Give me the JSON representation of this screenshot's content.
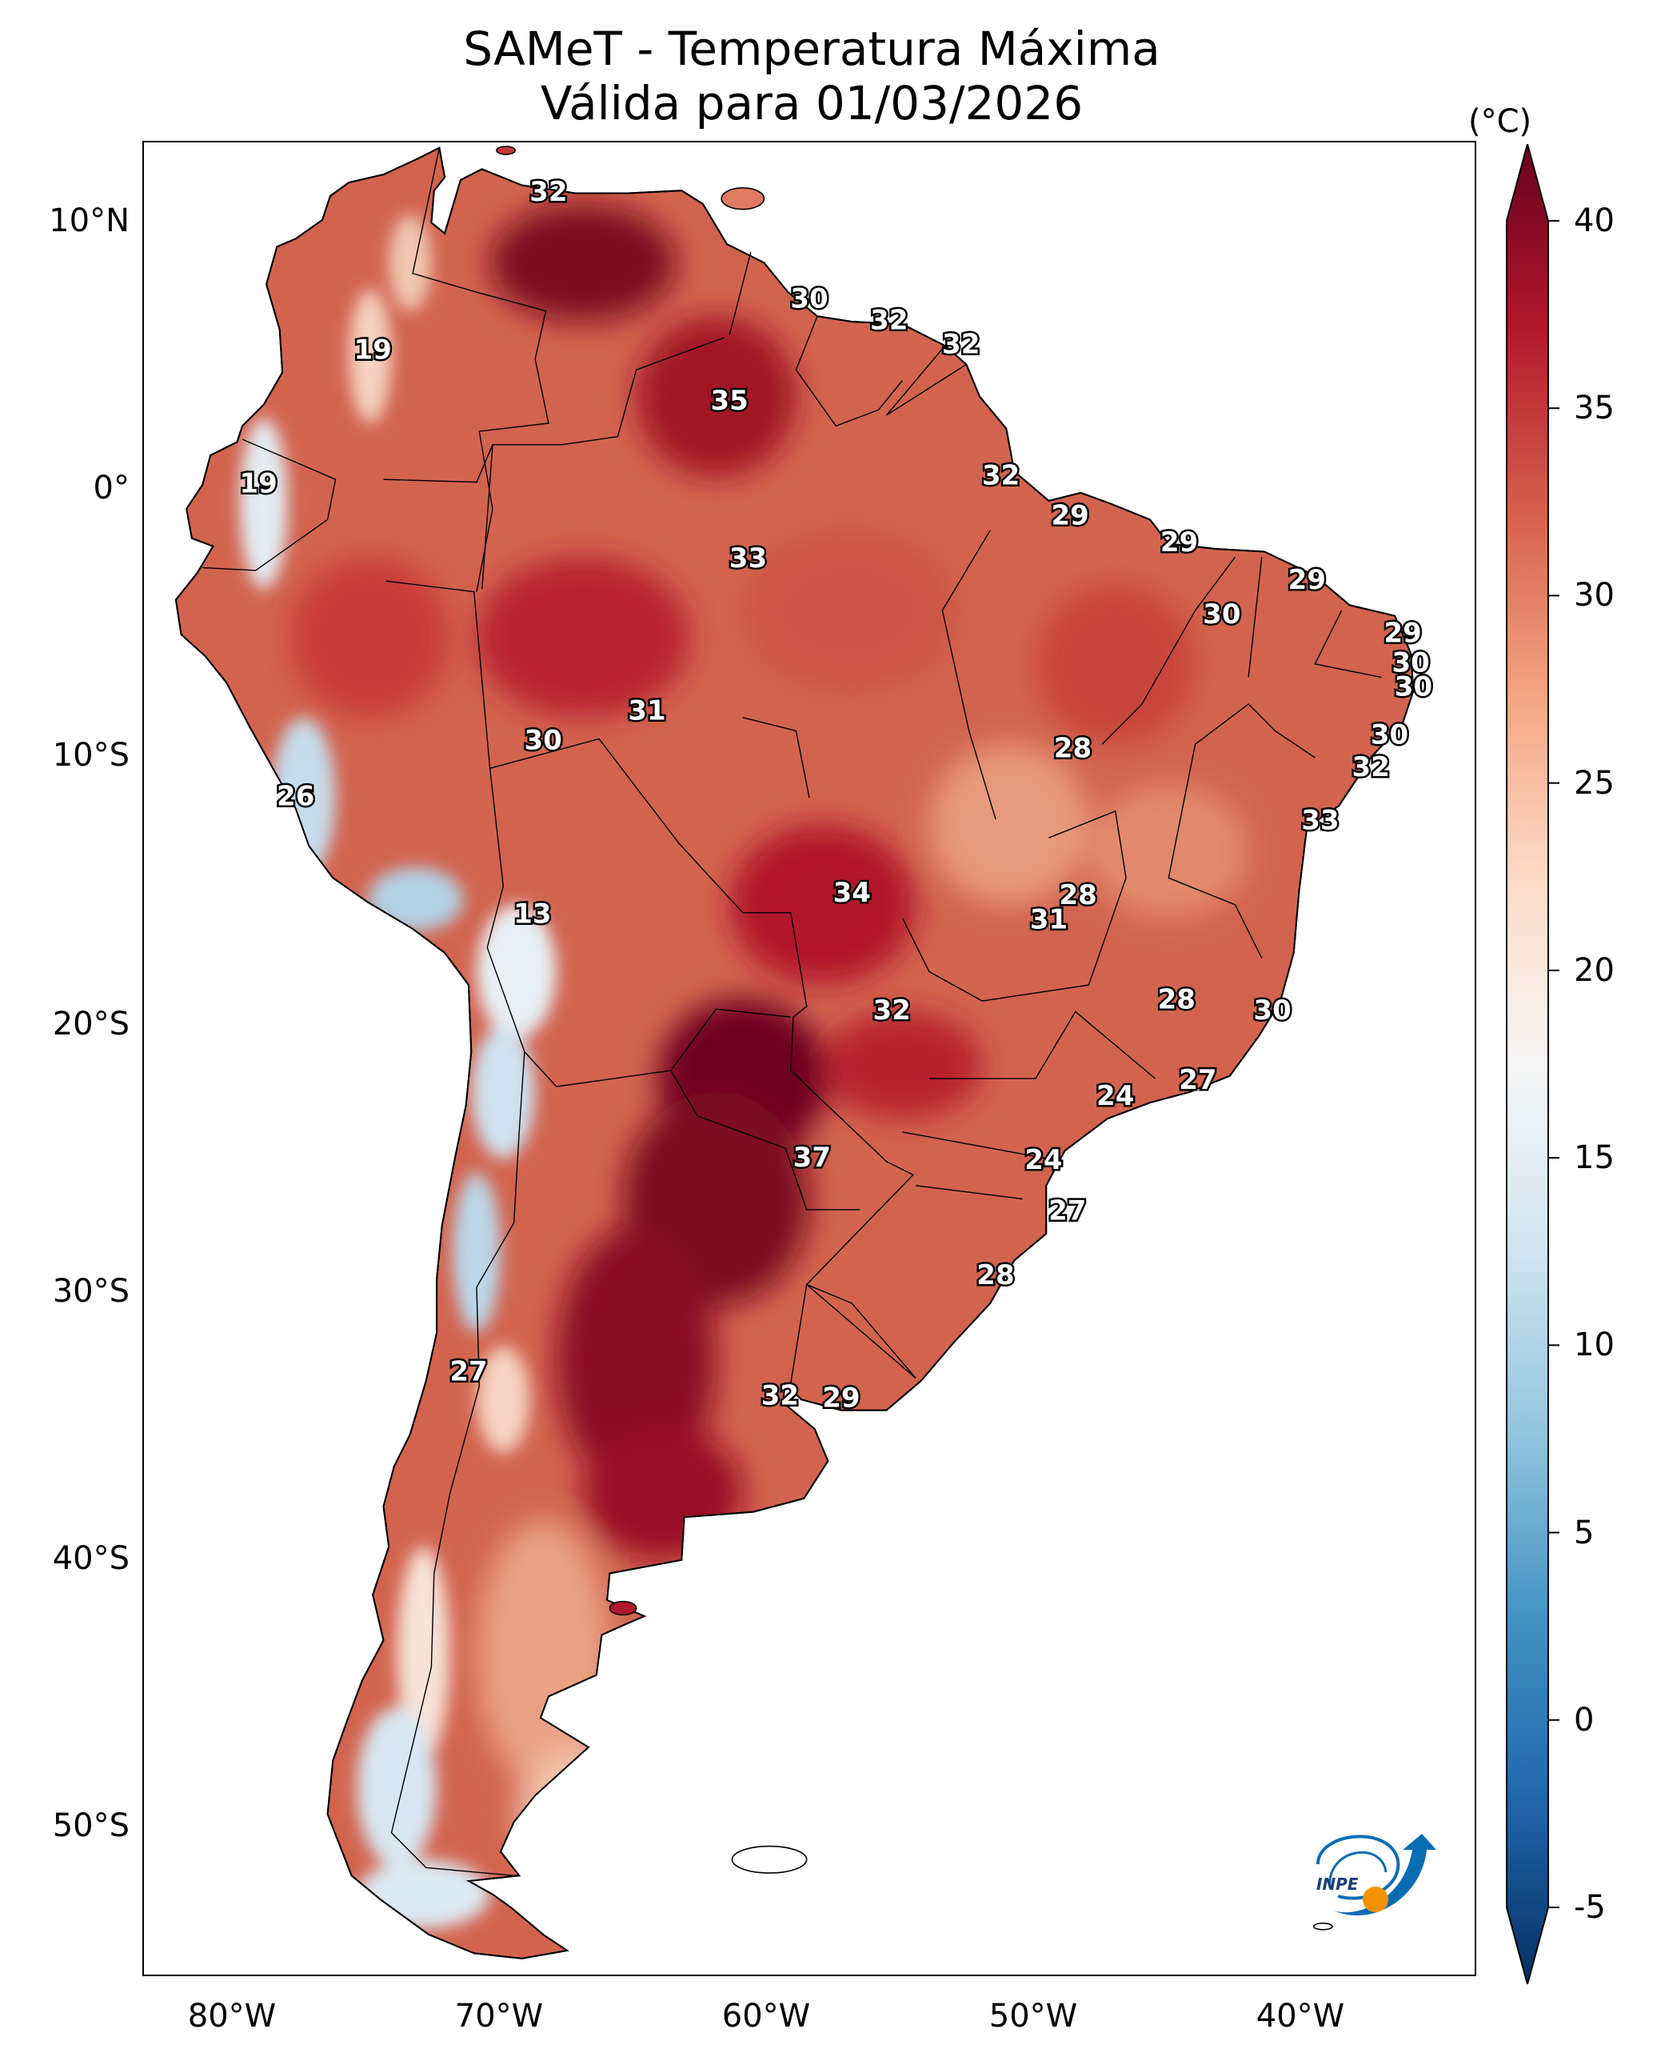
{
  "title": {
    "line1": "SAMeT - Temperatura Máxima",
    "line2": "Válida para 01/03/2026"
  },
  "colorbar": {
    "unit": "(°C)",
    "min": -7,
    "max": 42,
    "ticks": [
      "40",
      "35",
      "30",
      "25",
      "20",
      "15",
      "10",
      "5",
      "0",
      "-5"
    ],
    "tick_values": [
      40,
      35,
      30,
      25,
      20,
      15,
      10,
      5,
      0,
      -5
    ],
    "colors": [
      "#053061",
      "#2166ac",
      "#4393c3",
      "#92c5de",
      "#d1e5f0",
      "#f7f7f7",
      "#fddbc7",
      "#f4a582",
      "#d6604d",
      "#b2182b",
      "#67001f"
    ]
  },
  "axes": {
    "lat_labels": [
      "10°N",
      "0°",
      "10°S",
      "20°S",
      "30°S",
      "40°S",
      "50°S"
    ],
    "lat_values": [
      10,
      0,
      -10,
      -20,
      -30,
      -40,
      -50
    ],
    "lon_labels": [
      "80°W",
      "70°W",
      "60°W",
      "50°W",
      "40°W"
    ],
    "lon_values": [
      -80,
      -70,
      -60,
      -50,
      -40
    ],
    "lon_range": [
      -82.5,
      -32.5
    ],
    "lat_range": [
      -56,
      12.5
    ]
  },
  "map_labels": [
    {
      "text": "32",
      "lon": -67.3,
      "lat": 10.6
    },
    {
      "text": "30",
      "lon": -57.5,
      "lat": 6.6
    },
    {
      "text": "32",
      "lon": -54.5,
      "lat": 5.8
    },
    {
      "text": "32",
      "lon": -51.8,
      "lat": 4.9
    },
    {
      "text": "19",
      "lon": -73.9,
      "lat": 4.7
    },
    {
      "text": "35",
      "lon": -60.5,
      "lat": 2.8
    },
    {
      "text": "19",
      "lon": -78.2,
      "lat": -0.3
    },
    {
      "text": "32",
      "lon": -50.3,
      "lat": 0.0
    },
    {
      "text": "29",
      "lon": -47.7,
      "lat": -1.5
    },
    {
      "text": "29",
      "lon": -43.6,
      "lat": -2.5
    },
    {
      "text": "33",
      "lon": -59.8,
      "lat": -3.1
    },
    {
      "text": "29",
      "lon": -38.8,
      "lat": -3.9
    },
    {
      "text": "30",
      "lon": -42.0,
      "lat": -5.2
    },
    {
      "text": "29",
      "lon": -35.2,
      "lat": -5.9
    },
    {
      "text": "30",
      "lon": -34.9,
      "lat": -7.0
    },
    {
      "text": "30",
      "lon": -34.8,
      "lat": -7.9
    },
    {
      "text": "31",
      "lon": -63.6,
      "lat": -8.8
    },
    {
      "text": "30",
      "lon": -67.5,
      "lat": -9.9
    },
    {
      "text": "30",
      "lon": -35.7,
      "lat": -9.7
    },
    {
      "text": "28",
      "lon": -47.6,
      "lat": -10.2
    },
    {
      "text": "32",
      "lon": -36.4,
      "lat": -10.9
    },
    {
      "text": "26",
      "lon": -76.8,
      "lat": -12.0
    },
    {
      "text": "33",
      "lon": -38.3,
      "lat": -12.9
    },
    {
      "text": "34",
      "lon": -55.9,
      "lat": -15.6
    },
    {
      "text": "28",
      "lon": -47.4,
      "lat": -15.7
    },
    {
      "text": "13",
      "lon": -67.9,
      "lat": -16.4
    },
    {
      "text": "31",
      "lon": -48.5,
      "lat": -16.6
    },
    {
      "text": "32",
      "lon": -54.4,
      "lat": -20.0
    },
    {
      "text": "28",
      "lon": -43.7,
      "lat": -19.6
    },
    {
      "text": "30",
      "lon": -40.1,
      "lat": -20.0
    },
    {
      "text": "27",
      "lon": -42.9,
      "lat": -22.6
    },
    {
      "text": "24",
      "lon": -46.0,
      "lat": -23.2
    },
    {
      "text": "37",
      "lon": -57.4,
      "lat": -25.5
    },
    {
      "text": "24",
      "lon": -48.7,
      "lat": -25.6
    },
    {
      "text": "27",
      "lon": -47.8,
      "lat": -27.5
    },
    {
      "text": "28",
      "lon": -50.5,
      "lat": -29.9
    },
    {
      "text": "27",
      "lon": -70.3,
      "lat": -33.5
    },
    {
      "text": "32",
      "lon": -58.6,
      "lat": -34.4
    },
    {
      "text": "29",
      "lon": -56.3,
      "lat": -34.5
    }
  ]
}
